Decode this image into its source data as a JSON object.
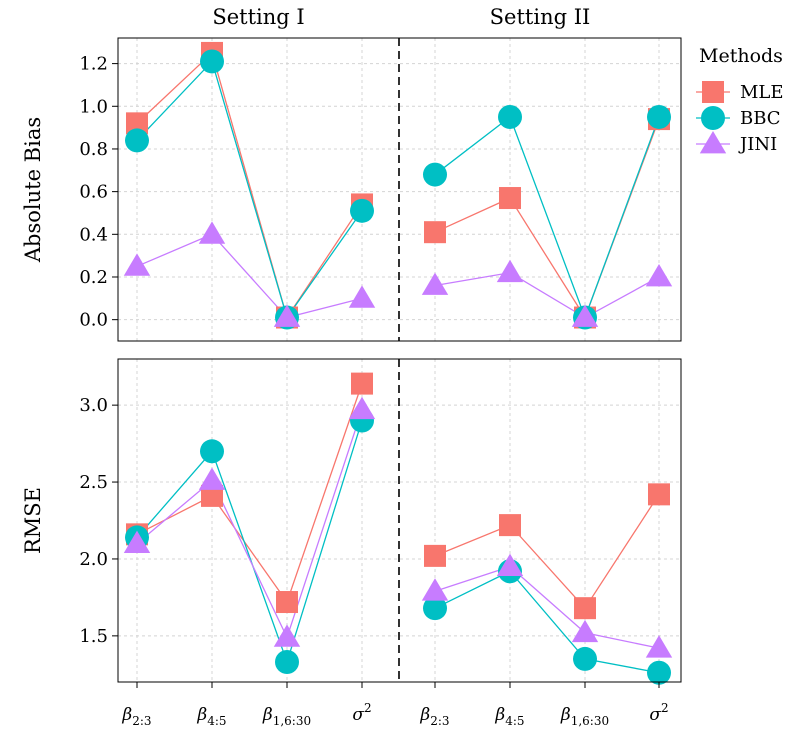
{
  "chart_data": {
    "type": "line",
    "legend": {
      "title": "Methods",
      "placement": "right",
      "entries": [
        {
          "name": "MLE",
          "color": "#F8766D",
          "marker": "square"
        },
        {
          "name": "BBC",
          "color": "#00BFC4",
          "marker": "circle"
        },
        {
          "name": "JINI",
          "color": "#C77CFF",
          "marker": "triangle"
        }
      ]
    },
    "columns": [
      "Setting I",
      "Setting II"
    ],
    "categories": [
      {
        "sym": "β",
        "sub": "2:3"
      },
      {
        "sym": "β",
        "sub": "4:5"
      },
      {
        "sym": "β",
        "sub": "1,6:30"
      },
      {
        "sym": "σ",
        "sup": "2"
      }
    ],
    "grid": true,
    "panels": [
      {
        "ylabel": "Absolute Bias",
        "ylim": [
          -0.1,
          1.32
        ],
        "yticks": [
          "0.0",
          "0.2",
          "0.4",
          "0.6",
          "0.8",
          "1.0",
          "1.2"
        ],
        "series": {
          "Setting I": {
            "MLE": [
              0.92,
              1.25,
              0.01,
              0.54
            ],
            "BBC": [
              0.84,
              1.21,
              0.01,
              0.51
            ],
            "JINI": [
              0.25,
              0.4,
              0.01,
              0.1
            ]
          },
          "Setting II": {
            "MLE": [
              0.41,
              0.57,
              0.01,
              0.94
            ],
            "BBC": [
              0.68,
              0.95,
              0.01,
              0.95
            ],
            "JINI": [
              0.16,
              0.22,
              0.01,
              0.2
            ]
          }
        }
      },
      {
        "ylabel": "RMSE",
        "ylim": [
          1.2,
          3.3
        ],
        "yticks": [
          "1.5",
          "2.0",
          "2.5",
          "3.0"
        ],
        "series": {
          "Setting I": {
            "MLE": [
              2.16,
              2.41,
              1.72,
              3.14
            ],
            "BBC": [
              2.14,
              2.7,
              1.33,
              2.9
            ],
            "JINI": [
              2.1,
              2.51,
              1.49,
              2.97
            ]
          },
          "Setting II": {
            "MLE": [
              2.02,
              2.22,
              1.68,
              2.42
            ],
            "BBC": [
              1.68,
              1.92,
              1.35,
              1.26
            ],
            "JINI": [
              1.79,
              1.95,
              1.52,
              1.42
            ]
          }
        }
      }
    ]
  }
}
